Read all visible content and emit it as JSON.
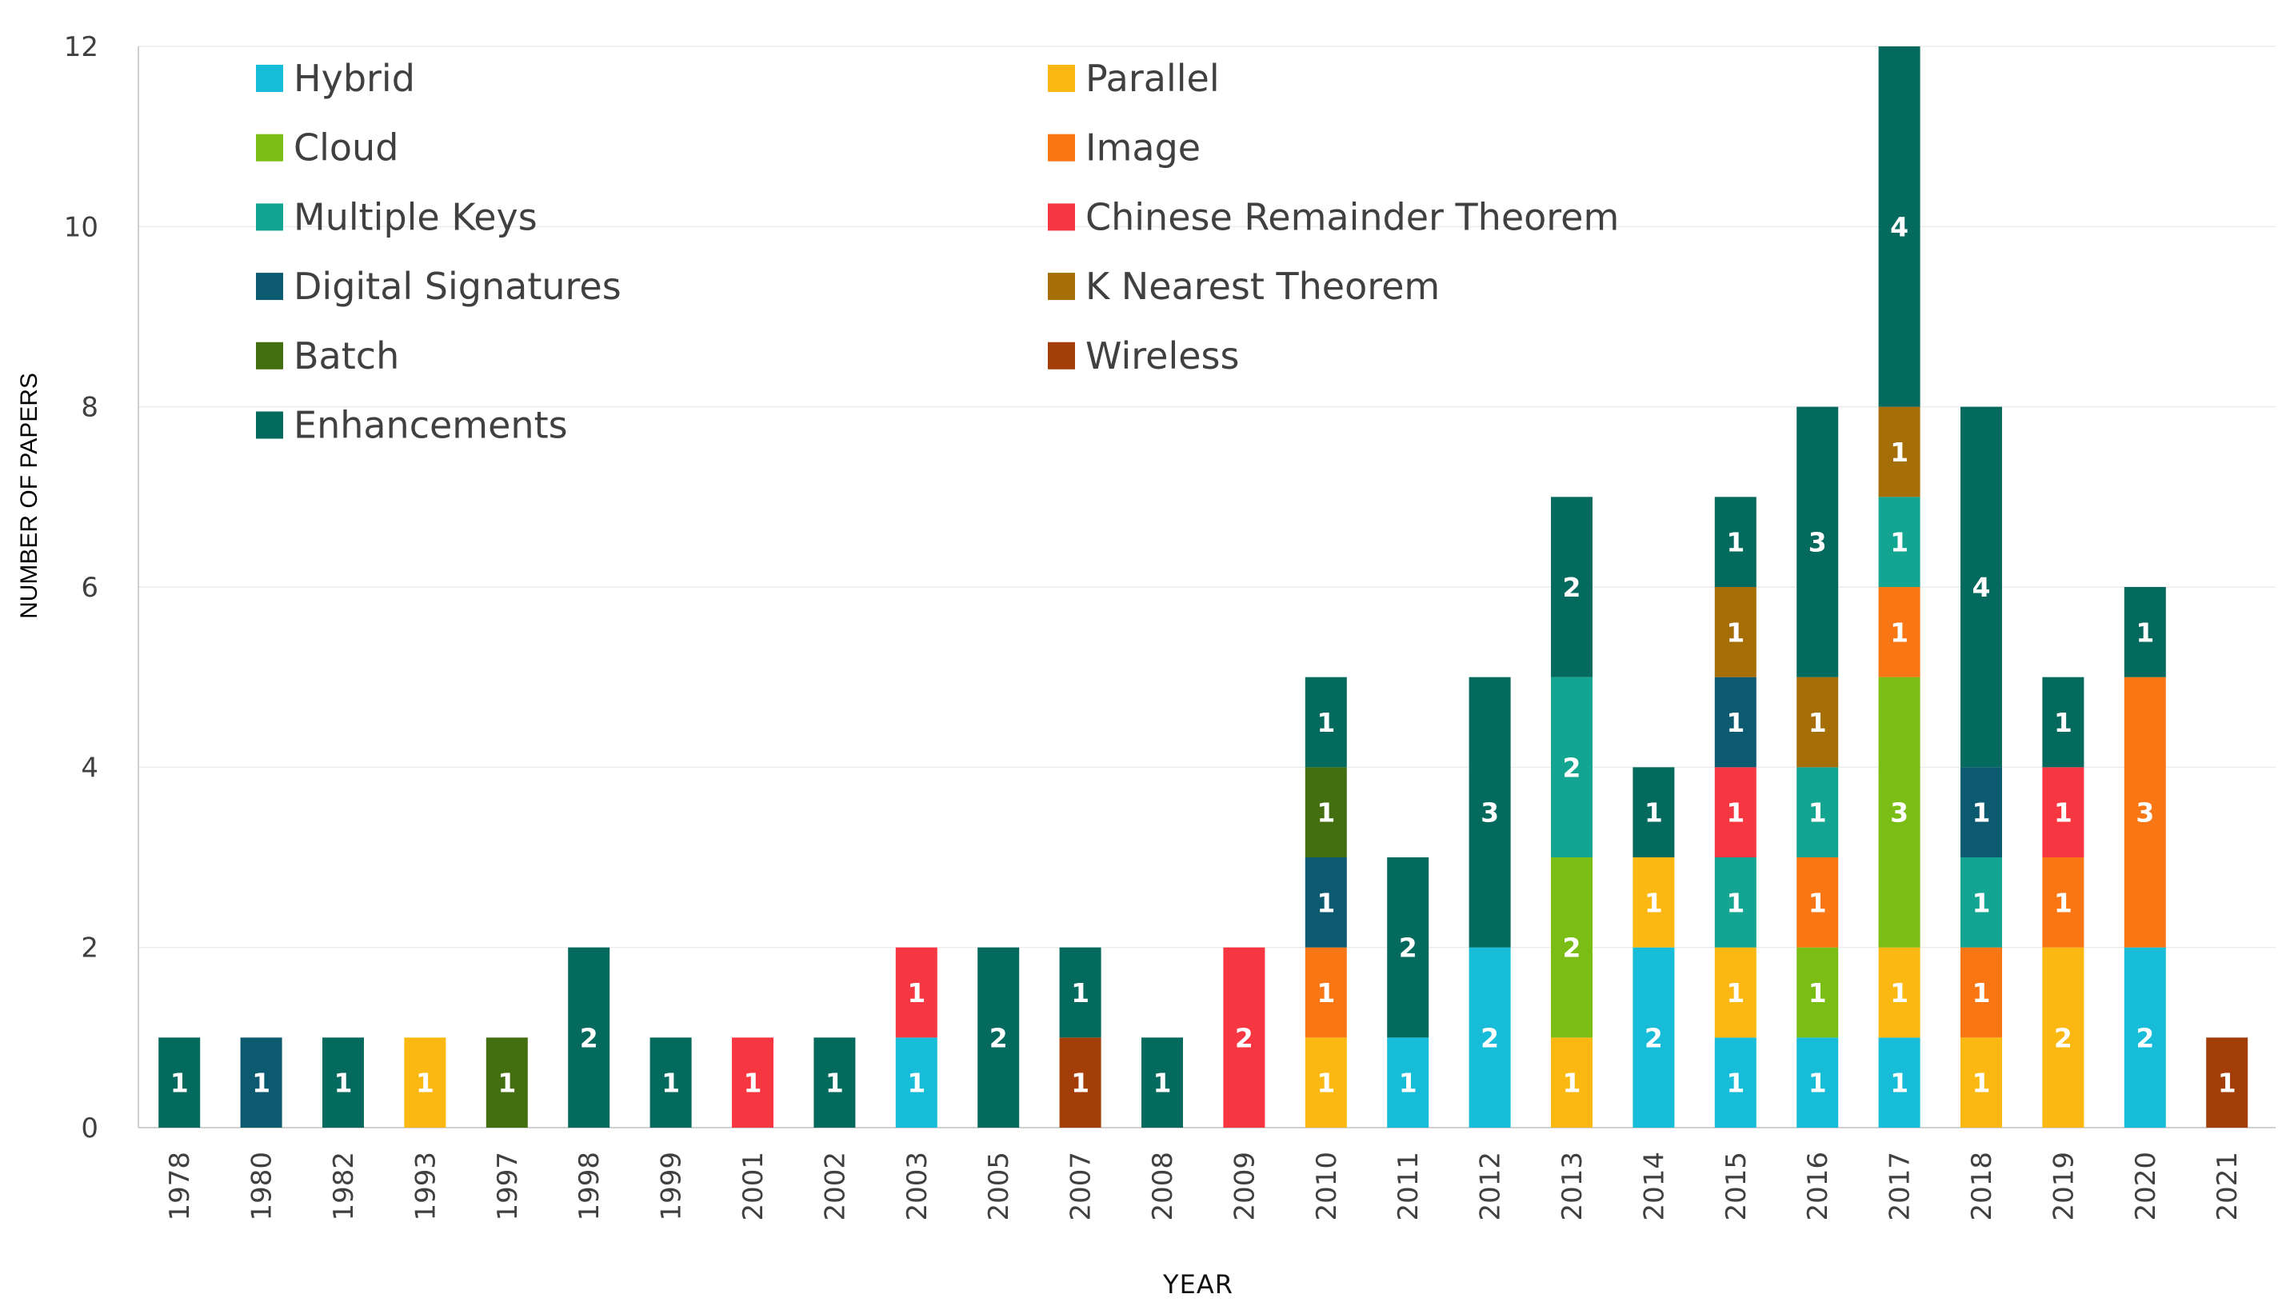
{
  "chart_data": {
    "type": "bar",
    "stacked": true,
    "xlabel": "YEAR",
    "ylabel": "NUMBER OF PAPERS",
    "ylim": [
      0,
      12
    ],
    "yticks": [
      0,
      2,
      4,
      6,
      8,
      10,
      12
    ],
    "grid": true,
    "legend_position": "top-left",
    "categories": [
      "1978",
      "1980",
      "1982",
      "1993",
      "1997",
      "1998",
      "1999",
      "2001",
      "2002",
      "2003",
      "2005",
      "2007",
      "2008",
      "2009",
      "2010",
      "2011",
      "2012",
      "2013",
      "2014",
      "2015",
      "2016",
      "2017",
      "2018",
      "2019",
      "2020",
      "2021"
    ],
    "series": [
      {
        "name": "Hybrid",
        "color": "#16BCD8",
        "values": [
          0,
          0,
          0,
          0,
          0,
          0,
          0,
          0,
          0,
          1,
          0,
          0,
          0,
          0,
          0,
          1,
          2,
          0,
          2,
          1,
          1,
          1,
          0,
          0,
          2,
          0
        ]
      },
      {
        "name": "Parallel",
        "color": "#FBB813",
        "values": [
          0,
          0,
          0,
          1,
          0,
          0,
          0,
          0,
          0,
          0,
          0,
          0,
          0,
          0,
          1,
          0,
          0,
          1,
          1,
          1,
          0,
          1,
          1,
          2,
          0,
          0
        ]
      },
      {
        "name": "Cloud",
        "color": "#7ABD14",
        "values": [
          0,
          0,
          0,
          0,
          0,
          0,
          0,
          0,
          0,
          0,
          0,
          0,
          0,
          0,
          0,
          0,
          0,
          2,
          0,
          0,
          1,
          3,
          0,
          0,
          0,
          0
        ]
      },
      {
        "name": "Image",
        "color": "#F97615",
        "values": [
          0,
          0,
          0,
          0,
          0,
          0,
          0,
          0,
          0,
          0,
          0,
          0,
          0,
          0,
          1,
          0,
          0,
          0,
          0,
          0,
          1,
          1,
          1,
          1,
          3,
          0
        ]
      },
      {
        "name": "Multiple Keys",
        "color": "#14A592",
        "values": [
          0,
          0,
          0,
          0,
          0,
          0,
          0,
          0,
          0,
          0,
          0,
          0,
          0,
          0,
          0,
          0,
          0,
          2,
          0,
          1,
          1,
          1,
          1,
          0,
          0,
          0
        ]
      },
      {
        "name": "Chinese Remainder Theorem",
        "color": "#F63742",
        "values": [
          0,
          0,
          0,
          0,
          0,
          0,
          0,
          1,
          0,
          1,
          0,
          0,
          0,
          2,
          0,
          0,
          0,
          0,
          0,
          1,
          0,
          0,
          0,
          1,
          0,
          0
        ]
      },
      {
        "name": "Digital Signatures",
        "color": "#0B5A70",
        "values": [
          0,
          1,
          0,
          0,
          0,
          0,
          0,
          0,
          0,
          0,
          0,
          0,
          0,
          0,
          1,
          0,
          0,
          0,
          0,
          1,
          0,
          0,
          1,
          0,
          0,
          0
        ]
      },
      {
        "name": "K Nearest Theorem",
        "color": "#A66E07",
        "values": [
          0,
          0,
          0,
          0,
          0,
          0,
          0,
          0,
          0,
          0,
          0,
          0,
          0,
          0,
          0,
          0,
          0,
          0,
          0,
          1,
          1,
          1,
          0,
          0,
          0,
          0
        ]
      },
      {
        "name": "Batch",
        "color": "#436F10",
        "values": [
          0,
          0,
          0,
          0,
          1,
          0,
          0,
          0,
          0,
          0,
          0,
          0,
          0,
          0,
          1,
          0,
          0,
          0,
          0,
          0,
          0,
          0,
          0,
          0,
          0,
          0
        ]
      },
      {
        "name": "Wireless",
        "color": "#A43E09",
        "values": [
          0,
          0,
          0,
          0,
          0,
          0,
          0,
          0,
          0,
          0,
          0,
          1,
          0,
          0,
          0,
          0,
          0,
          0,
          0,
          0,
          0,
          0,
          0,
          0,
          0,
          1
        ]
      },
      {
        "name": "Enhancements",
        "color": "#056A5E",
        "values": [
          1,
          0,
          1,
          0,
          0,
          2,
          1,
          0,
          1,
          0,
          2,
          1,
          1,
          0,
          1,
          2,
          3,
          2,
          1,
          1,
          3,
          4,
          4,
          1,
          1,
          0
        ]
      }
    ],
    "legend_order": [
      "Hybrid",
      "Parallel",
      "Cloud",
      "Image",
      "Multiple Keys",
      "Chinese Remainder Theorem",
      "Digital Signatures",
      "K Nearest Theorem",
      "Batch",
      "Wireless",
      "Enhancements"
    ]
  }
}
